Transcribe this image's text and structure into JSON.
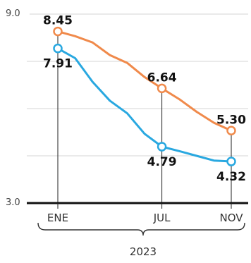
{
  "chart_data": {
    "type": "line",
    "ylim": [
      3.0,
      9.0
    ],
    "y_ticks": [
      "9.0",
      "3.0"
    ],
    "grid": true,
    "x_labels": [
      {
        "label": "ENE",
        "month_index": 0
      },
      {
        "label": "JUL",
        "month_index": 6
      },
      {
        "label": "NOV",
        "month_index": 10
      }
    ],
    "year_label": "2023",
    "series": [
      {
        "color": "#f08a4b",
        "points": [
          {
            "m": 0,
            "v": 8.45
          },
          {
            "m": 1,
            "v": 8.3
          },
          {
            "m": 2,
            "v": 8.1
          },
          {
            "m": 3,
            "v": 7.7
          },
          {
            "m": 4,
            "v": 7.45
          },
          {
            "m": 5,
            "v": 7.0
          },
          {
            "m": 6,
            "v": 6.64
          },
          {
            "m": 7,
            "v": 6.3
          },
          {
            "m": 8,
            "v": 5.9
          },
          {
            "m": 9,
            "v": 5.55
          },
          {
            "m": 10,
            "v": 5.3
          }
        ],
        "labels": [
          {
            "m": 0,
            "text": "8.45",
            "pos": "above"
          },
          {
            "m": 6,
            "text": "6.64",
            "pos": "above"
          },
          {
            "m": 10,
            "text": "5.30",
            "pos": "above"
          }
        ]
      },
      {
        "color": "#29a8e0",
        "points": [
          {
            "m": 0,
            "v": 7.91
          },
          {
            "m": 1,
            "v": 7.6
          },
          {
            "m": 2,
            "v": 6.85
          },
          {
            "m": 3,
            "v": 6.25
          },
          {
            "m": 4,
            "v": 5.85
          },
          {
            "m": 5,
            "v": 5.2
          },
          {
            "m": 6,
            "v": 4.79
          },
          {
            "m": 7,
            "v": 4.65
          },
          {
            "m": 8,
            "v": 4.5
          },
          {
            "m": 9,
            "v": 4.35
          },
          {
            "m": 10,
            "v": 4.32
          }
        ],
        "labels": [
          {
            "m": 0,
            "text": "7.91",
            "pos": "below"
          },
          {
            "m": 6,
            "text": "4.79",
            "pos": "below"
          },
          {
            "m": 10,
            "text": "4.32",
            "pos": "below"
          }
        ]
      }
    ]
  }
}
